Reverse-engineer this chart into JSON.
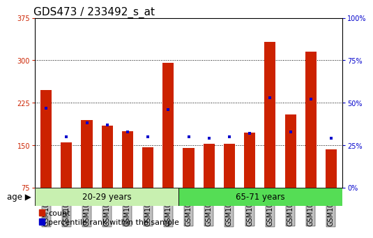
{
  "title": "GDS473 / 233492_s_at",
  "samples": [
    "GSM10354",
    "GSM10355",
    "GSM10356",
    "GSM10359",
    "GSM10360",
    "GSM10361",
    "GSM10362",
    "GSM10363",
    "GSM10364",
    "GSM10365",
    "GSM10366",
    "GSM10367",
    "GSM10368",
    "GSM10369",
    "GSM10370"
  ],
  "counts": [
    248,
    155,
    195,
    185,
    175,
    147,
    296,
    145,
    153,
    152,
    172,
    333,
    205,
    315,
    143
  ],
  "percentile_ranks": [
    47,
    30,
    38,
    37,
    33,
    30,
    46,
    30,
    29,
    30,
    32,
    53,
    33,
    52,
    29
  ],
  "group1_label": "20-29 years",
  "group2_label": "65-71 years",
  "group1_count": 7,
  "group2_count": 8,
  "ylim_left": [
    75,
    375
  ],
  "ylim_right": [
    0,
    100
  ],
  "yticks_left": [
    75,
    150,
    225,
    300,
    375
  ],
  "yticks_right": [
    0,
    25,
    50,
    75,
    100
  ],
  "bar_color": "#cc2200",
  "marker_color": "#0000cc",
  "bg_color_group1": "#c8f0b0",
  "bg_color_group2": "#55dd55",
  "tick_bg_color": "#c0c0c0",
  "legend_bar_label": "count",
  "legend_marker_label": "percentile rank within the sample",
  "left_axis_color": "#cc2200",
  "right_axis_color": "#0000cc",
  "title_fontsize": 11,
  "tick_fontsize": 7,
  "bar_width": 0.55,
  "xlim_lo": -0.55,
  "xlim_hi": 14.55
}
